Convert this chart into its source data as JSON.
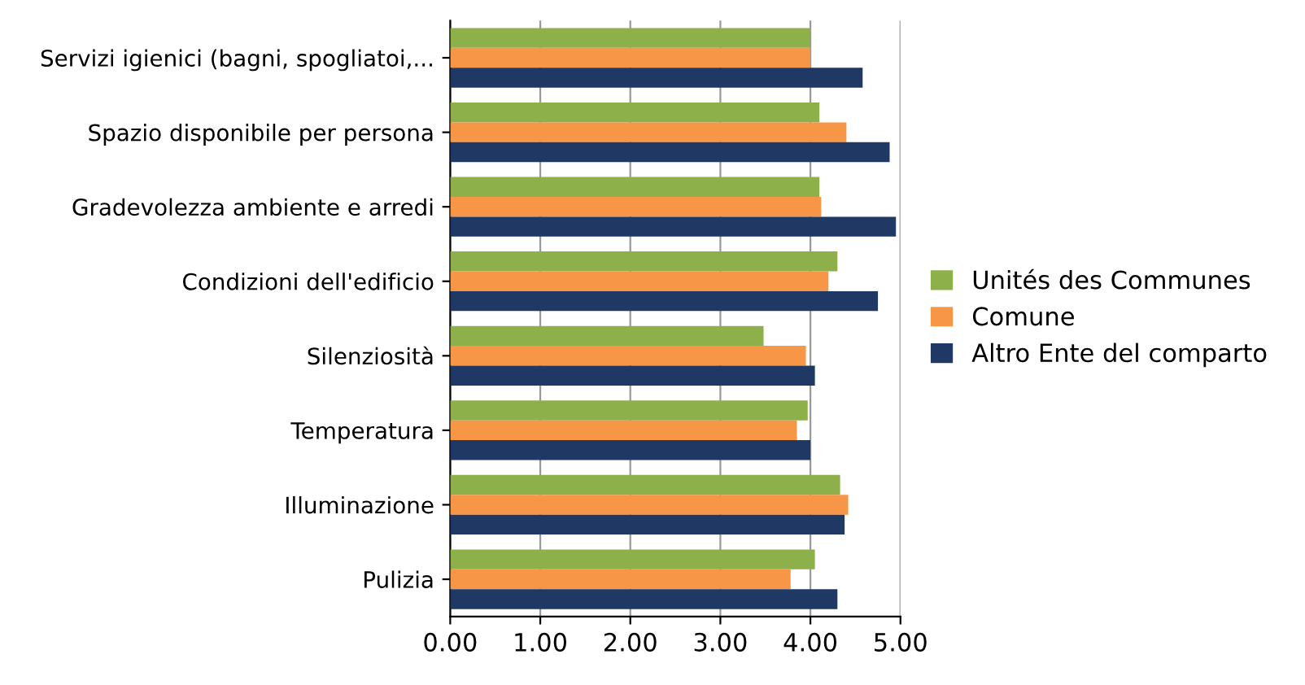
{
  "chart_data": {
    "type": "bar",
    "orientation": "horizontal",
    "categories": [
      "Servizi igienici (bagni, spogliatoi,...",
      "Spazio disponibile per persona",
      "Gradevolezza ambiente e arredi",
      "Condizioni dell'edificio",
      "Silenziosità",
      "Temperatura",
      "Illuminazione",
      "Pulizia"
    ],
    "series": [
      {
        "name": "Unités des Communes",
        "color": "#8db04a",
        "values": [
          4.0,
          4.1,
          4.1,
          4.3,
          3.48,
          3.97,
          4.33,
          4.05
        ]
      },
      {
        "name": "Comune",
        "color": "#f79646",
        "values": [
          4.0,
          4.4,
          4.12,
          4.2,
          3.95,
          3.85,
          4.42,
          3.78
        ]
      },
      {
        "name": "Altro Ente del comparto",
        "color": "#1f3864",
        "values": [
          4.58,
          4.88,
          4.95,
          4.75,
          4.05,
          4.0,
          4.38,
          4.3
        ]
      }
    ],
    "xlim": [
      0,
      5
    ],
    "xticks": [
      {
        "value": 0,
        "label": "0.00"
      },
      {
        "value": 1,
        "label": "1.00"
      },
      {
        "value": 2,
        "label": "2.00"
      },
      {
        "value": 3,
        "label": "3.00"
      },
      {
        "value": 4,
        "label": "4.00"
      },
      {
        "value": 5,
        "label": "5.00"
      }
    ],
    "grid": "x",
    "legend": "right"
  }
}
